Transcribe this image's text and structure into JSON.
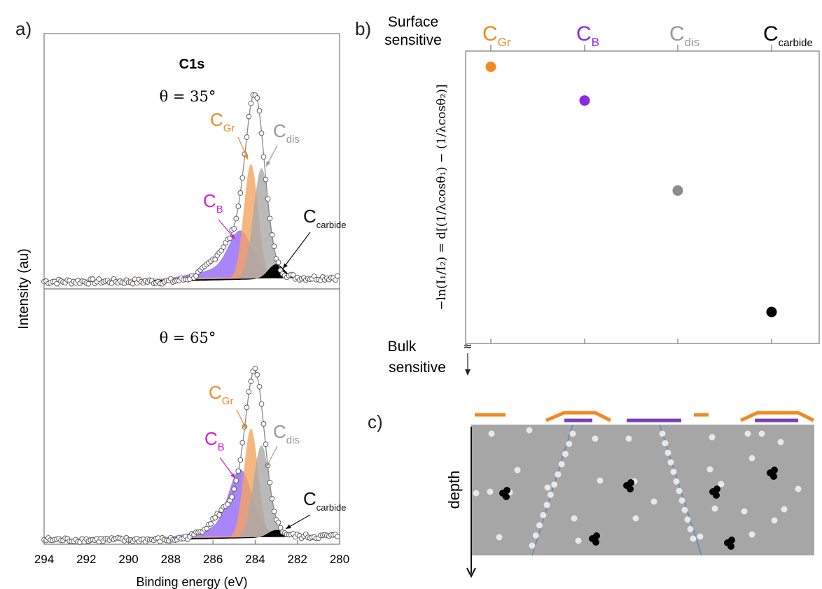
{
  "panel_labels": {
    "a": "a)",
    "b": "b)",
    "c": "c)"
  },
  "colors": {
    "graphite": "#f08a24",
    "boron": "#8a2be2",
    "boron_label": "#d21fd2",
    "disordered": "#8c8c8c",
    "carbide": "#000000",
    "purple_fill": "#8b5cf6",
    "orange_fill": "#f4a460",
    "envelope": "#888888",
    "sample_gray": "#a6a6a6",
    "dot_light": "#e8e8e8",
    "grain_line": "#4a7fc8"
  },
  "chart_data": [
    {
      "type": "line",
      "title": "C1s",
      "xlabel": "Binding energy (eV)",
      "ylabel": "Intensity (au)",
      "xlim": [
        294,
        280
      ],
      "x_reversed": true,
      "xticks": [
        "294",
        "292",
        "290",
        "288",
        "286",
        "284",
        "282",
        "280"
      ],
      "grid": false,
      "panels": [
        {
          "angle_label": "θ = 35°",
          "components": [
            {
              "name": "C_Gr",
              "center_eV": 284.2,
              "height": 0.55,
              "fwhm_eV": 0.8
            },
            {
              "name": "C_dis",
              "center_eV": 283.7,
              "height": 0.53,
              "fwhm_eV": 0.9
            },
            {
              "name": "C_B",
              "center_eV": 284.7,
              "height": 0.19,
              "fwhm_eV": 1.3
            },
            {
              "name": "C_carbide",
              "center_eV": 283.0,
              "height": 0.07,
              "fwhm_eV": 0.9
            }
          ],
          "envelope_peak_eV": 284.0,
          "envelope_height": 0.94
        },
        {
          "angle_label": "θ = 65°",
          "components": [
            {
              "name": "C_Gr",
              "center_eV": 284.2,
              "height": 0.58,
              "fwhm_eV": 0.8
            },
            {
              "name": "C_dis",
              "center_eV": 283.7,
              "height": 0.49,
              "fwhm_eV": 0.9
            },
            {
              "name": "C_B",
              "center_eV": 284.7,
              "height": 0.32,
              "fwhm_eV": 1.3
            },
            {
              "name": "C_carbide",
              "center_eV": 283.0,
              "height": 0.04,
              "fwhm_eV": 0.9
            }
          ],
          "envelope_peak_eV": 284.0,
          "envelope_height": 0.94
        }
      ],
      "labels": {
        "gr_main": "C",
        "gr_sub": "Gr",
        "dis_main": "C",
        "dis_sub": "dis",
        "b_main": "C",
        "b_sub": "B",
        "carb_main": "C",
        "carb_sub": "carbide"
      }
    },
    {
      "type": "scatter",
      "ylabel": "−ln(I₁/I₂) = d[(1/λcosθ₁) − (1/λcosθ₂)]",
      "top_label_line1": "Surface",
      "top_label_line2": "sensitive",
      "bottom_label_line1": "Bulk",
      "bottom_label_line2": "sensitive",
      "categories": [
        "C_Gr",
        "C_B",
        "C_dis",
        "C_carbide"
      ],
      "values": [
        0.93,
        0.78,
        0.38,
        -0.16
      ],
      "ylim": [
        -0.3,
        1.0
      ],
      "point_colors": [
        "#f08a24",
        "#8a2be2",
        "#8c8c8c",
        "#000000"
      ],
      "category_labels": [
        {
          "main": "C",
          "sub": "Gr",
          "color": "#f08a24"
        },
        {
          "main": "C",
          "sub": "B",
          "color": "#8a2be2"
        },
        {
          "main": "C",
          "sub": "dis",
          "color": "#999999"
        },
        {
          "main": "C",
          "sub": "carbide",
          "color": "#000000"
        }
      ],
      "axis_break": "≈",
      "grid": false
    }
  ],
  "schematic": {
    "depth_label": "depth"
  }
}
